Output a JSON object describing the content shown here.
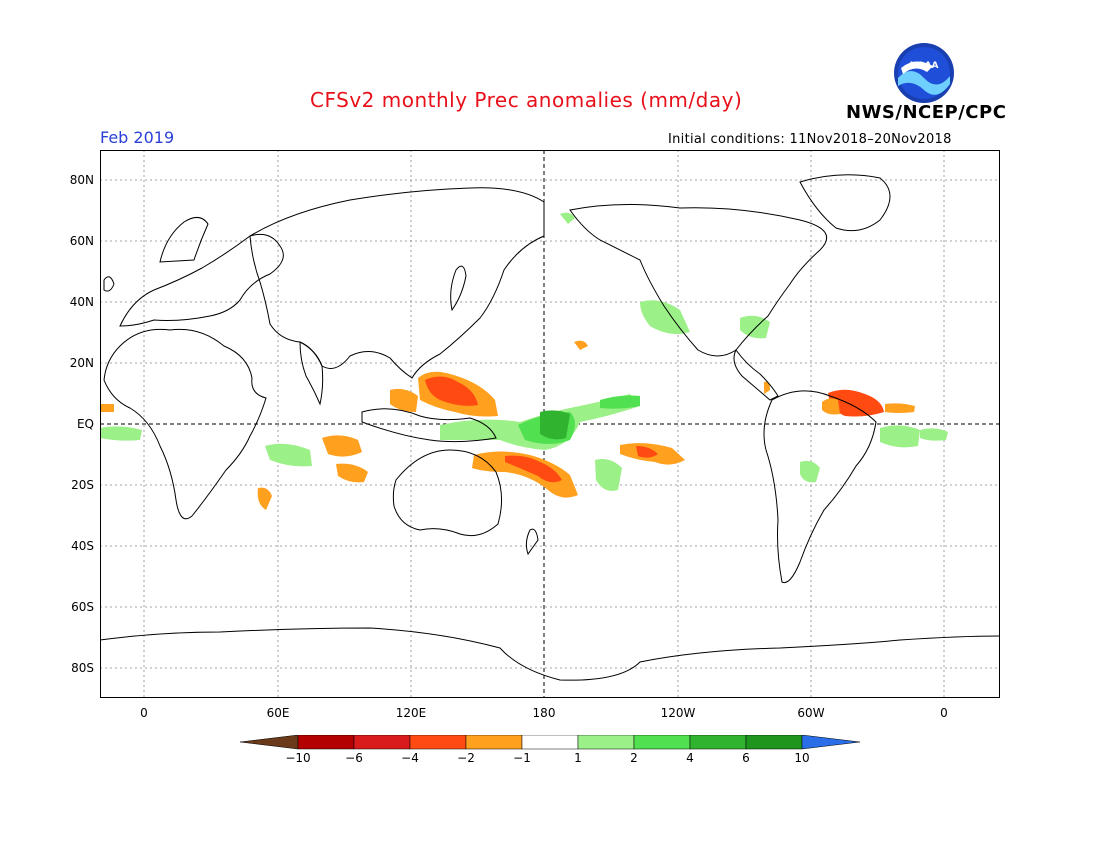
{
  "header": {
    "title": "CFSv2 monthly Prec anomalies (mm/day)",
    "agency": "NWS/NCEP/CPC",
    "month": "Feb 2019",
    "initial_conditions": "Initial conditions: 11Nov2018–20Nov2018",
    "logo_text": "NOAA"
  },
  "axes": {
    "lat_labels": [
      "80N",
      "60N",
      "40N",
      "20N",
      "EQ",
      "20S",
      "40S",
      "60S",
      "80S"
    ],
    "lon_labels": [
      "0",
      "60E",
      "120E",
      "180",
      "120W",
      "60W",
      "0"
    ]
  },
  "colorbar": {
    "ticks": [
      "−10",
      "−6",
      "−4",
      "−2",
      "−1",
      "1",
      "2",
      "4",
      "6",
      "10"
    ],
    "colors": [
      "#6b3a1a",
      "#b30000",
      "#d81b1b",
      "#ff4a12",
      "#ffa01f",
      "#ffffff",
      "#9bf088",
      "#50e050",
      "#30b430",
      "#1e961e",
      "#2a6fe8"
    ]
  }
}
